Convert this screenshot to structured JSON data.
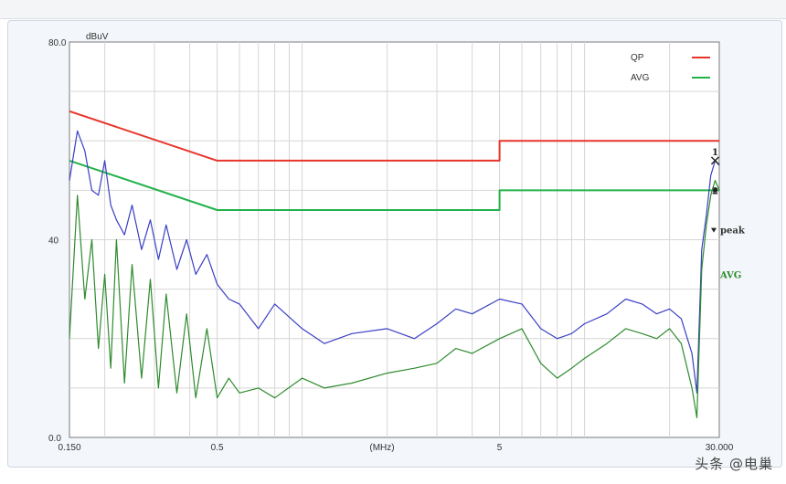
{
  "chart_data": {
    "type": "line",
    "title": "",
    "unit": "dBuV",
    "xlabel": "(MHz)",
    "ylabel": "",
    "x_scale": "log",
    "xlim": [
      0.15,
      30
    ],
    "ylim": [
      0,
      80
    ],
    "y_ticks": [
      "80.0",
      "40",
      "0.0"
    ],
    "x_ticks": [
      {
        "value": 0.15,
        "label": "0.150"
      },
      {
        "value": 0.5,
        "label": "0.5"
      },
      {
        "value": 5,
        "label": "5"
      },
      {
        "value": 30,
        "label": "30.000"
      }
    ],
    "grid": true,
    "legend_position": "top-right",
    "legend": [
      {
        "label": "QP",
        "color": "#e8342a"
      },
      {
        "label": "AVG",
        "color": "#22b24a"
      }
    ],
    "series": [
      {
        "name": "QP",
        "kind": "limit",
        "color": "#e8342a",
        "x": [
          0.15,
          0.5,
          0.5,
          5,
          5,
          30
        ],
        "y": [
          66,
          56,
          56,
          56,
          60,
          60
        ]
      },
      {
        "name": "AVG",
        "kind": "limit",
        "color": "#22b24a",
        "x": [
          0.15,
          0.5,
          0.5,
          5,
          5,
          30
        ],
        "y": [
          56,
          46,
          46,
          46,
          50,
          50
        ]
      },
      {
        "name": "peak",
        "kind": "measurement",
        "color": "#3a3fc4",
        "x": [
          0.15,
          0.16,
          0.17,
          0.18,
          0.19,
          0.2,
          0.21,
          0.22,
          0.235,
          0.25,
          0.27,
          0.29,
          0.31,
          0.33,
          0.36,
          0.39,
          0.42,
          0.46,
          0.5,
          0.55,
          0.6,
          0.7,
          0.8,
          1.0,
          1.2,
          1.5,
          2.0,
          2.5,
          3.0,
          3.5,
          4.0,
          5.0,
          6.0,
          7.0,
          8.0,
          9.0,
          10.0,
          12.0,
          14.0,
          16.0,
          18.0,
          20.0,
          22.0,
          24.0,
          25.0,
          26.0,
          27.0,
          28.0,
          29.0,
          30.0
        ],
        "y": [
          52,
          62,
          58,
          50,
          49,
          56,
          47,
          44,
          41,
          47,
          38,
          44,
          36,
          43,
          34,
          40,
          33,
          37,
          31,
          28,
          27,
          22,
          27,
          22,
          19,
          21,
          22,
          20,
          23,
          26,
          25,
          28,
          27,
          22,
          20,
          21,
          23,
          25,
          28,
          27,
          25,
          26,
          24,
          17,
          9,
          38,
          45,
          53,
          56,
          55
        ]
      },
      {
        "name": "AVG",
        "kind": "measurement",
        "color": "#2e8b2e",
        "x": [
          0.15,
          0.16,
          0.17,
          0.18,
          0.19,
          0.2,
          0.21,
          0.22,
          0.235,
          0.25,
          0.27,
          0.29,
          0.31,
          0.33,
          0.36,
          0.39,
          0.42,
          0.46,
          0.5,
          0.55,
          0.6,
          0.7,
          0.8,
          1.0,
          1.2,
          1.5,
          2.0,
          2.5,
          3.0,
          3.5,
          4.0,
          5.0,
          6.0,
          7.0,
          8.0,
          9.0,
          10.0,
          12.0,
          14.0,
          16.0,
          18.0,
          20.0,
          22.0,
          24.0,
          25.0,
          26.0,
          27.0,
          28.0,
          29.0,
          30.0
        ],
        "y": [
          20,
          49,
          28,
          40,
          18,
          33,
          14,
          40,
          11,
          35,
          12,
          32,
          10,
          29,
          9,
          25,
          8,
          22,
          8,
          12,
          9,
          10,
          8,
          12,
          10,
          11,
          13,
          14,
          15,
          18,
          17,
          20,
          22,
          15,
          12,
          14,
          16,
          19,
          22,
          21,
          20,
          22,
          19,
          10,
          4,
          34,
          43,
          49,
          52,
          50
        ]
      }
    ],
    "annotations": [
      {
        "text": "1",
        "x": 29.0,
        "y": 56
      },
      {
        "text": "2",
        "x": 29.0,
        "y": 50
      },
      {
        "text": "peak",
        "x": 30,
        "y": 42
      },
      {
        "text": "AVG",
        "x": 30,
        "y": 33
      }
    ]
  },
  "watermark": "头条 @电巢"
}
